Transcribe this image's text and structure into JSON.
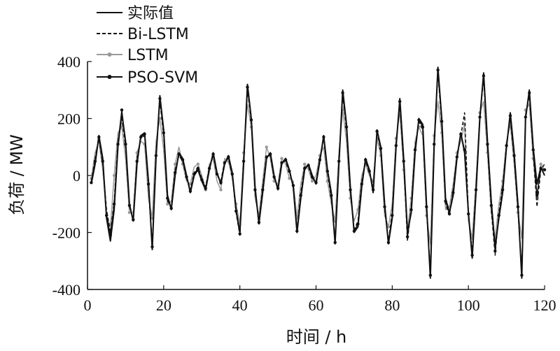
{
  "chart_data": {
    "type": "line",
    "xlabel": "时间 / h",
    "ylabel": "负荷 / MW",
    "xlim": [
      0,
      120
    ],
    "ylim": [
      -400,
      400
    ],
    "xticks": [
      0,
      20,
      40,
      60,
      80,
      100,
      120
    ],
    "yticks": [
      -400,
      -200,
      0,
      200,
      400
    ],
    "grid": false,
    "legend_position": "top-left",
    "series": [
      {
        "name": "实际值",
        "style": "solid",
        "color": "#111111",
        "x": [
          1,
          2,
          3,
          4,
          5,
          6,
          7,
          8,
          9,
          10,
          11,
          12,
          13,
          14,
          15,
          16,
          17,
          18,
          19,
          20,
          21,
          22,
          23,
          24,
          25,
          26,
          27,
          28,
          29,
          30,
          31,
          32,
          33,
          34,
          35,
          36,
          37,
          38,
          39,
          40,
          41,
          42,
          43,
          44,
          45,
          46,
          47,
          48,
          49,
          50,
          51,
          52,
          53,
          54,
          55,
          56,
          57,
          58,
          59,
          60,
          61,
          62,
          63,
          64,
          65,
          66,
          67,
          68,
          69,
          70,
          71,
          72,
          73,
          74,
          75,
          76,
          77,
          78,
          79,
          80,
          81,
          82,
          83,
          84,
          85,
          86,
          87,
          88,
          89,
          90,
          91,
          92,
          93,
          94,
          95,
          96,
          97,
          98,
          99,
          100,
          101,
          102,
          103,
          104,
          105,
          106,
          107,
          108,
          109,
          110,
          111,
          112,
          113,
          114,
          115,
          116,
          117,
          118,
          119,
          120
        ],
        "values": [
          -30,
          40,
          140,
          60,
          -150,
          -230,
          -120,
          100,
          220,
          120,
          -100,
          -160,
          40,
          140,
          150,
          -20,
          -260,
          60,
          280,
          160,
          -70,
          -120,
          0,
          80,
          60,
          0,
          -60,
          0,
          20,
          -20,
          -50,
          20,
          80,
          10,
          -30,
          40,
          70,
          10,
          -120,
          -200,
          40,
          320,
          200,
          -40,
          -170,
          -60,
          60,
          80,
          0,
          -50,
          40,
          60,
          20,
          -40,
          -200,
          -80,
          20,
          40,
          0,
          -30,
          50,
          140,
          20,
          -60,
          -240,
          40,
          300,
          180,
          -40,
          -200,
          -180,
          -40,
          60,
          20,
          -60,
          160,
          100,
          -100,
          -240,
          -150,
          100,
          270,
          60,
          -200,
          -130,
          80,
          200,
          180,
          -100,
          -360,
          100,
          380,
          200,
          -80,
          -130,
          -70,
          60,
          150,
          80,
          -130,
          -290,
          -60,
          200,
          360,
          120,
          -90,
          -250,
          -150,
          -60,
          100,
          220,
          80,
          -100,
          -360,
          200,
          300,
          100,
          -30,
          30,
          0
        ],
        "markers": false
      },
      {
        "name": "Bi-LSTM",
        "style": "dashed",
        "color": "#111111",
        "x": [
          1,
          2,
          3,
          4,
          5,
          6,
          7,
          8,
          9,
          10,
          11,
          12,
          13,
          14,
          15,
          16,
          17,
          18,
          19,
          20,
          21,
          22,
          23,
          24,
          25,
          26,
          27,
          28,
          29,
          30,
          31,
          32,
          33,
          34,
          35,
          36,
          37,
          38,
          39,
          40,
          41,
          42,
          43,
          44,
          45,
          46,
          47,
          48,
          49,
          50,
          51,
          52,
          53,
          54,
          55,
          56,
          57,
          58,
          59,
          60,
          61,
          62,
          63,
          64,
          65,
          66,
          67,
          68,
          69,
          70,
          71,
          72,
          73,
          74,
          75,
          76,
          77,
          78,
          79,
          80,
          81,
          82,
          83,
          84,
          85,
          86,
          87,
          88,
          89,
          90,
          91,
          92,
          93,
          94,
          95,
          96,
          97,
          98,
          99,
          100,
          101,
          102,
          103,
          104,
          105,
          106,
          107,
          108,
          109,
          110,
          111,
          112,
          113,
          114,
          115,
          116,
          117,
          118,
          119,
          120
        ],
        "values": [
          -20,
          60,
          130,
          40,
          -120,
          -200,
          -90,
          120,
          200,
          100,
          -110,
          -150,
          60,
          130,
          140,
          -40,
          -240,
          80,
          260,
          140,
          -90,
          -110,
          20,
          70,
          50,
          -10,
          -50,
          10,
          30,
          -10,
          -40,
          30,
          70,
          0,
          -20,
          50,
          60,
          0,
          -130,
          -210,
          60,
          300,
          190,
          -60,
          -160,
          -40,
          70,
          70,
          -10,
          -40,
          50,
          50,
          10,
          -30,
          -190,
          -60,
          30,
          30,
          -10,
          -20,
          60,
          130,
          10,
          -80,
          -230,
          60,
          280,
          160,
          -60,
          -190,
          -160,
          -20,
          50,
          10,
          -40,
          150,
          90,
          -120,
          -230,
          -130,
          110,
          250,
          40,
          -230,
          -110,
          100,
          190,
          160,
          -120,
          -340,
          120,
          360,
          180,
          -100,
          -140,
          -50,
          70,
          140,
          220,
          -140,
          -270,
          -40,
          210,
          340,
          100,
          -120,
          -280,
          -130,
          -40,
          110,
          200,
          60,
          -120,
          -340,
          210,
          280,
          80,
          -110,
          20,
          40
        ],
        "markers": false
      },
      {
        "name": "LSTM",
        "style": "solid",
        "color": "#9a9a9a",
        "x": [
          1,
          2,
          3,
          4,
          5,
          6,
          7,
          8,
          9,
          10,
          11,
          12,
          13,
          14,
          15,
          16,
          17,
          18,
          19,
          20,
          21,
          22,
          23,
          24,
          25,
          26,
          27,
          28,
          29,
          30,
          31,
          32,
          33,
          34,
          35,
          36,
          37,
          38,
          39,
          40,
          41,
          42,
          43,
          44,
          45,
          46,
          47,
          48,
          49,
          50,
          51,
          52,
          53,
          54,
          55,
          56,
          57,
          58,
          59,
          60,
          61,
          62,
          63,
          64,
          65,
          66,
          67,
          68,
          69,
          70,
          71,
          72,
          73,
          74,
          75,
          76,
          77,
          78,
          79,
          80,
          81,
          82,
          83,
          84,
          85,
          86,
          87,
          88,
          89,
          90,
          91,
          92,
          93,
          94,
          95,
          96,
          97,
          98,
          99,
          100,
          101,
          102,
          103,
          104,
          105,
          106,
          107,
          108,
          109,
          110,
          111,
          112,
          113,
          114,
          115,
          116,
          117,
          118,
          119,
          120
        ],
        "values": [
          -10,
          80,
          120,
          20,
          -140,
          -180,
          0,
          150,
          170,
          60,
          -130,
          -130,
          80,
          120,
          110,
          -80,
          -150,
          120,
          200,
          90,
          -100,
          -90,
          40,
          100,
          40,
          -20,
          -30,
          30,
          40,
          0,
          -50,
          40,
          60,
          -20,
          -50,
          60,
          50,
          -10,
          -100,
          -170,
          80,
          250,
          170,
          -80,
          -140,
          -20,
          100,
          60,
          -20,
          -30,
          60,
          40,
          -10,
          -20,
          -150,
          -30,
          40,
          20,
          -20,
          0,
          70,
          100,
          -20,
          -100,
          -160,
          80,
          230,
          120,
          -80,
          -160,
          -120,
          0,
          40,
          0,
          -20,
          130,
          70,
          -140,
          -180,
          -100,
          130,
          220,
          20,
          -190,
          -80,
          120,
          170,
          140,
          -140,
          -240,
          140,
          260,
          150,
          -120,
          -110,
          -30,
          80,
          120,
          180,
          -160,
          -220,
          -20,
          220,
          260,
          80,
          -130,
          -220,
          -100,
          -20,
          120,
          180,
          40,
          -130,
          -220,
          230,
          250,
          60,
          -80,
          40,
          20
        ],
        "markers": true
      },
      {
        "name": "PSO-SVM",
        "style": "solid",
        "color": "#111111",
        "x": [
          1,
          2,
          3,
          4,
          5,
          6,
          7,
          8,
          9,
          10,
          11,
          12,
          13,
          14,
          15,
          16,
          17,
          18,
          19,
          20,
          21,
          22,
          23,
          24,
          25,
          26,
          27,
          28,
          29,
          30,
          31,
          32,
          33,
          34,
          35,
          36,
          37,
          38,
          39,
          40,
          41,
          42,
          43,
          44,
          45,
          46,
          47,
          48,
          49,
          50,
          51,
          52,
          53,
          54,
          55,
          56,
          57,
          58,
          59,
          60,
          61,
          62,
          63,
          64,
          65,
          66,
          67,
          68,
          69,
          70,
          71,
          72,
          73,
          74,
          75,
          76,
          77,
          78,
          79,
          80,
          81,
          82,
          83,
          84,
          85,
          86,
          87,
          88,
          89,
          90,
          91,
          92,
          93,
          94,
          95,
          96,
          97,
          98,
          99,
          100,
          101,
          102,
          103,
          104,
          105,
          106,
          107,
          108,
          109,
          110,
          111,
          112,
          113,
          114,
          115,
          116,
          117,
          118,
          119,
          120
        ],
        "values": [
          -25,
          50,
          135,
          50,
          -140,
          -210,
          -100,
          110,
          230,
          110,
          -105,
          -155,
          50,
          135,
          145,
          -30,
          -250,
          70,
          270,
          150,
          -80,
          -115,
          10,
          75,
          55,
          -5,
          -55,
          5,
          25,
          -15,
          -45,
          25,
          75,
          5,
          -25,
          45,
          65,
          5,
          -125,
          -205,
          50,
          310,
          195,
          -50,
          -165,
          -50,
          65,
          75,
          -5,
          -45,
          45,
          55,
          15,
          -35,
          -195,
          -70,
          25,
          35,
          -5,
          -25,
          55,
          135,
          15,
          -70,
          -235,
          50,
          290,
          170,
          -50,
          -195,
          -170,
          -30,
          55,
          15,
          -50,
          155,
          95,
          -110,
          -235,
          -140,
          105,
          260,
          50,
          -215,
          -120,
          90,
          195,
          170,
          -110,
          -350,
          110,
          370,
          190,
          -90,
          -135,
          -60,
          65,
          145,
          90,
          -135,
          -280,
          -50,
          205,
          350,
          110,
          -105,
          -265,
          -140,
          -50,
          105,
          210,
          70,
          -110,
          -350,
          205,
          290,
          90,
          -70,
          25,
          20
        ],
        "markers": true
      }
    ]
  }
}
